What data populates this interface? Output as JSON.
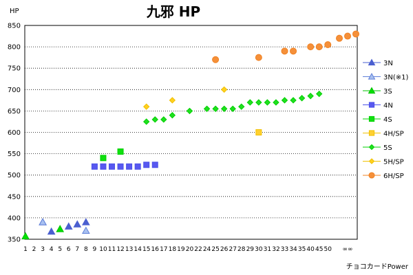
{
  "chart_data": {
    "type": "scatter",
    "title": "九邪 HP",
    "ylabel": "HP",
    "xlabel": "チョコカードPower",
    "ylim": [
      350,
      850
    ],
    "yticks": [
      350,
      400,
      450,
      500,
      550,
      600,
      650,
      700,
      750,
      800,
      850
    ],
    "grid": "horizontal-dotted",
    "legend_position": "right",
    "categories": [
      "1",
      "2",
      "3",
      "4",
      "5",
      "6",
      "7",
      "8",
      "9",
      "10",
      "11",
      "12",
      "13",
      "14",
      "15",
      "16",
      "17",
      "18",
      "19",
      "20",
      "22",
      "24",
      "25",
      "26",
      "27",
      "28",
      "29",
      "30",
      "31",
      "32",
      "33",
      "34",
      "35",
      "40",
      "45",
      "50",
      "∞∞"
    ],
    "series": [
      {
        "name": "3N",
        "marker": "triangle",
        "color": "#4a5fd0",
        "fill": "#4a5fd0",
        "points": [
          [
            "3",
            390
          ],
          [
            "4",
            368
          ],
          [
            "6",
            380
          ],
          [
            "7",
            385
          ],
          [
            "8",
            390
          ]
        ]
      },
      {
        "name": "3N(※1)",
        "marker": "triangle",
        "color": "#6080d8",
        "fill": "#a8c0f0",
        "points": [
          [
            "3",
            390
          ],
          [
            "8",
            370
          ]
        ]
      },
      {
        "name": "3S",
        "marker": "triangle",
        "color": "#00c000",
        "fill": "#00e000",
        "points": [
          [
            "1",
            357
          ],
          [
            "5",
            374
          ]
        ]
      },
      {
        "name": "4N",
        "marker": "square",
        "color": "#4a50e8",
        "fill": "#5858f0",
        "points": [
          [
            "9",
            520
          ],
          [
            "10",
            520
          ],
          [
            "11",
            520
          ],
          [
            "12",
            520
          ],
          [
            "13",
            520
          ],
          [
            "14",
            520
          ],
          [
            "15",
            524
          ],
          [
            "16",
            524
          ]
        ]
      },
      {
        "name": "4S",
        "marker": "square",
        "color": "#00d000",
        "fill": "#10e010",
        "points": [
          [
            "10",
            540
          ],
          [
            "12",
            555
          ]
        ]
      },
      {
        "name": "4H/SP",
        "marker": "square",
        "color": "#f0c000",
        "fill": "#ffd030",
        "points": [
          [
            "30",
            600
          ]
        ]
      },
      {
        "name": "5S",
        "marker": "diamond",
        "color": "#00d000",
        "fill": "#20e020",
        "points": [
          [
            "15",
            625
          ],
          [
            "16",
            630
          ],
          [
            "17",
            630
          ],
          [
            "18",
            640
          ],
          [
            "20",
            650
          ],
          [
            "24",
            655
          ],
          [
            "25",
            655
          ],
          [
            "26",
            655
          ],
          [
            "27",
            655
          ],
          [
            "28",
            660
          ],
          [
            "29",
            670
          ],
          [
            "30",
            670
          ],
          [
            "31",
            670
          ],
          [
            "32",
            670
          ],
          [
            "33",
            675
          ],
          [
            "34",
            675
          ],
          [
            "35",
            680
          ],
          [
            "40",
            685
          ],
          [
            "45",
            690
          ]
        ]
      },
      {
        "name": "5H/SP",
        "marker": "diamond",
        "color": "#f0c000",
        "fill": "#ffd020",
        "points": [
          [
            "15",
            660
          ],
          [
            "18",
            675
          ],
          [
            "26",
            700
          ]
        ]
      },
      {
        "name": "6H/SP",
        "marker": "circle",
        "color": "#f08020",
        "fill": "#f5903a",
        "points": [
          [
            "25",
            770
          ],
          [
            "30",
            775
          ],
          [
            "33",
            790
          ],
          [
            "34",
            790
          ],
          [
            "40",
            800
          ],
          [
            "45",
            800
          ],
          [
            "50",
            805
          ],
          [
            "∞∞",
            820
          ],
          [
            "∞∞",
            825
          ],
          [
            "∞∞",
            830
          ]
        ]
      }
    ]
  }
}
